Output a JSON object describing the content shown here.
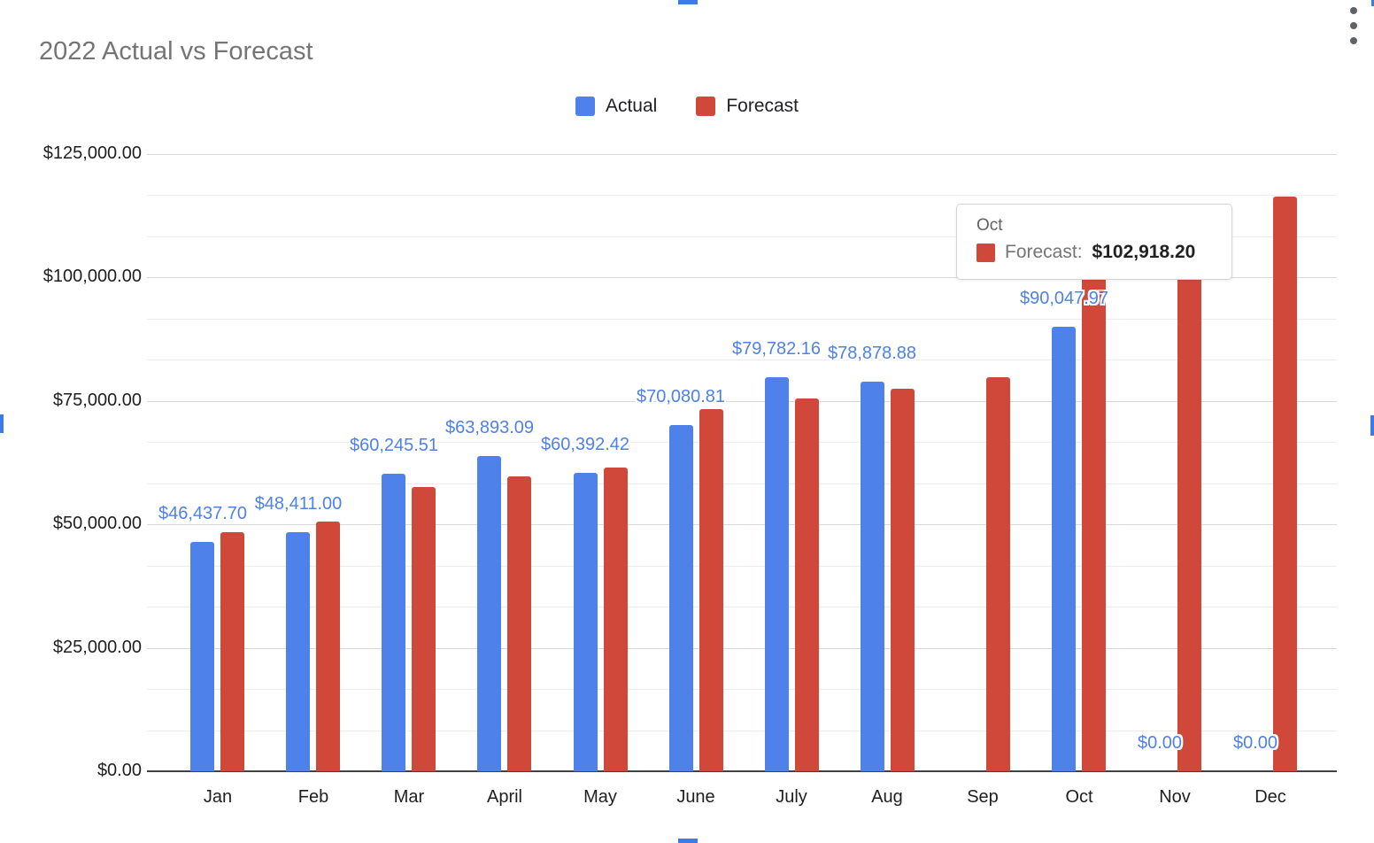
{
  "chart_data": {
    "type": "bar",
    "title": "2022 Actual vs Forecast",
    "categories": [
      "Jan",
      "Feb",
      "Mar",
      "April",
      "May",
      "June",
      "July",
      "Aug",
      "Sep",
      "Oct",
      "Nov",
      "Dec"
    ],
    "series": [
      {
        "name": "Actual",
        "color": "#4e81e9",
        "values": [
          46437.7,
          48411.0,
          60245.51,
          63893.09,
          60392.42,
          70080.81,
          79782.16,
          78878.88,
          null,
          90047.97,
          0,
          0
        ],
        "data_labels": [
          "$46,437.70",
          "$48,411.00",
          "$60,245.51",
          "$63,893.09",
          "$60,392.42",
          "$70,080.81",
          "$79,782.16",
          "$78,878.88",
          "",
          "$90,047.97",
          "$0.00",
          "$0.00"
        ]
      },
      {
        "name": "Forecast",
        "color": "#cf483a",
        "values": [
          48500,
          50500,
          57500,
          59800,
          61500,
          73300,
          75500,
          77400,
          79800,
          102918.2,
          100500,
          116400
        ],
        "data_labels": [
          "",
          "",
          "",
          "",
          "",
          "",
          "",
          "",
          "",
          "",
          "",
          ""
        ]
      }
    ],
    "y_axis": {
      "ylim": [
        0,
        125000
      ],
      "major_step": 25000,
      "minor_divisions": 3,
      "ticks": [
        {
          "value": 0,
          "label": "$0.00"
        },
        {
          "value": 25000,
          "label": "$25,000.00"
        },
        {
          "value": 50000,
          "label": "$50,000.00"
        },
        {
          "value": 75000,
          "label": "$75,000.00"
        },
        {
          "value": 100000,
          "label": "$100,000.00"
        },
        {
          "value": 125000,
          "label": "$125,000.00"
        }
      ]
    },
    "legend_position": "top",
    "grid": true
  },
  "tooltip": {
    "category": "Oct",
    "series": "Forecast",
    "series_label": "Forecast:",
    "value_label": "$102,918.20",
    "series_color": "#cf483a"
  },
  "colors": {
    "actual": "#4e81e9",
    "forecast": "#cf483a",
    "data_label": "#4f81e9",
    "title": "#757575",
    "selection_handle": "#3e79e8"
  }
}
